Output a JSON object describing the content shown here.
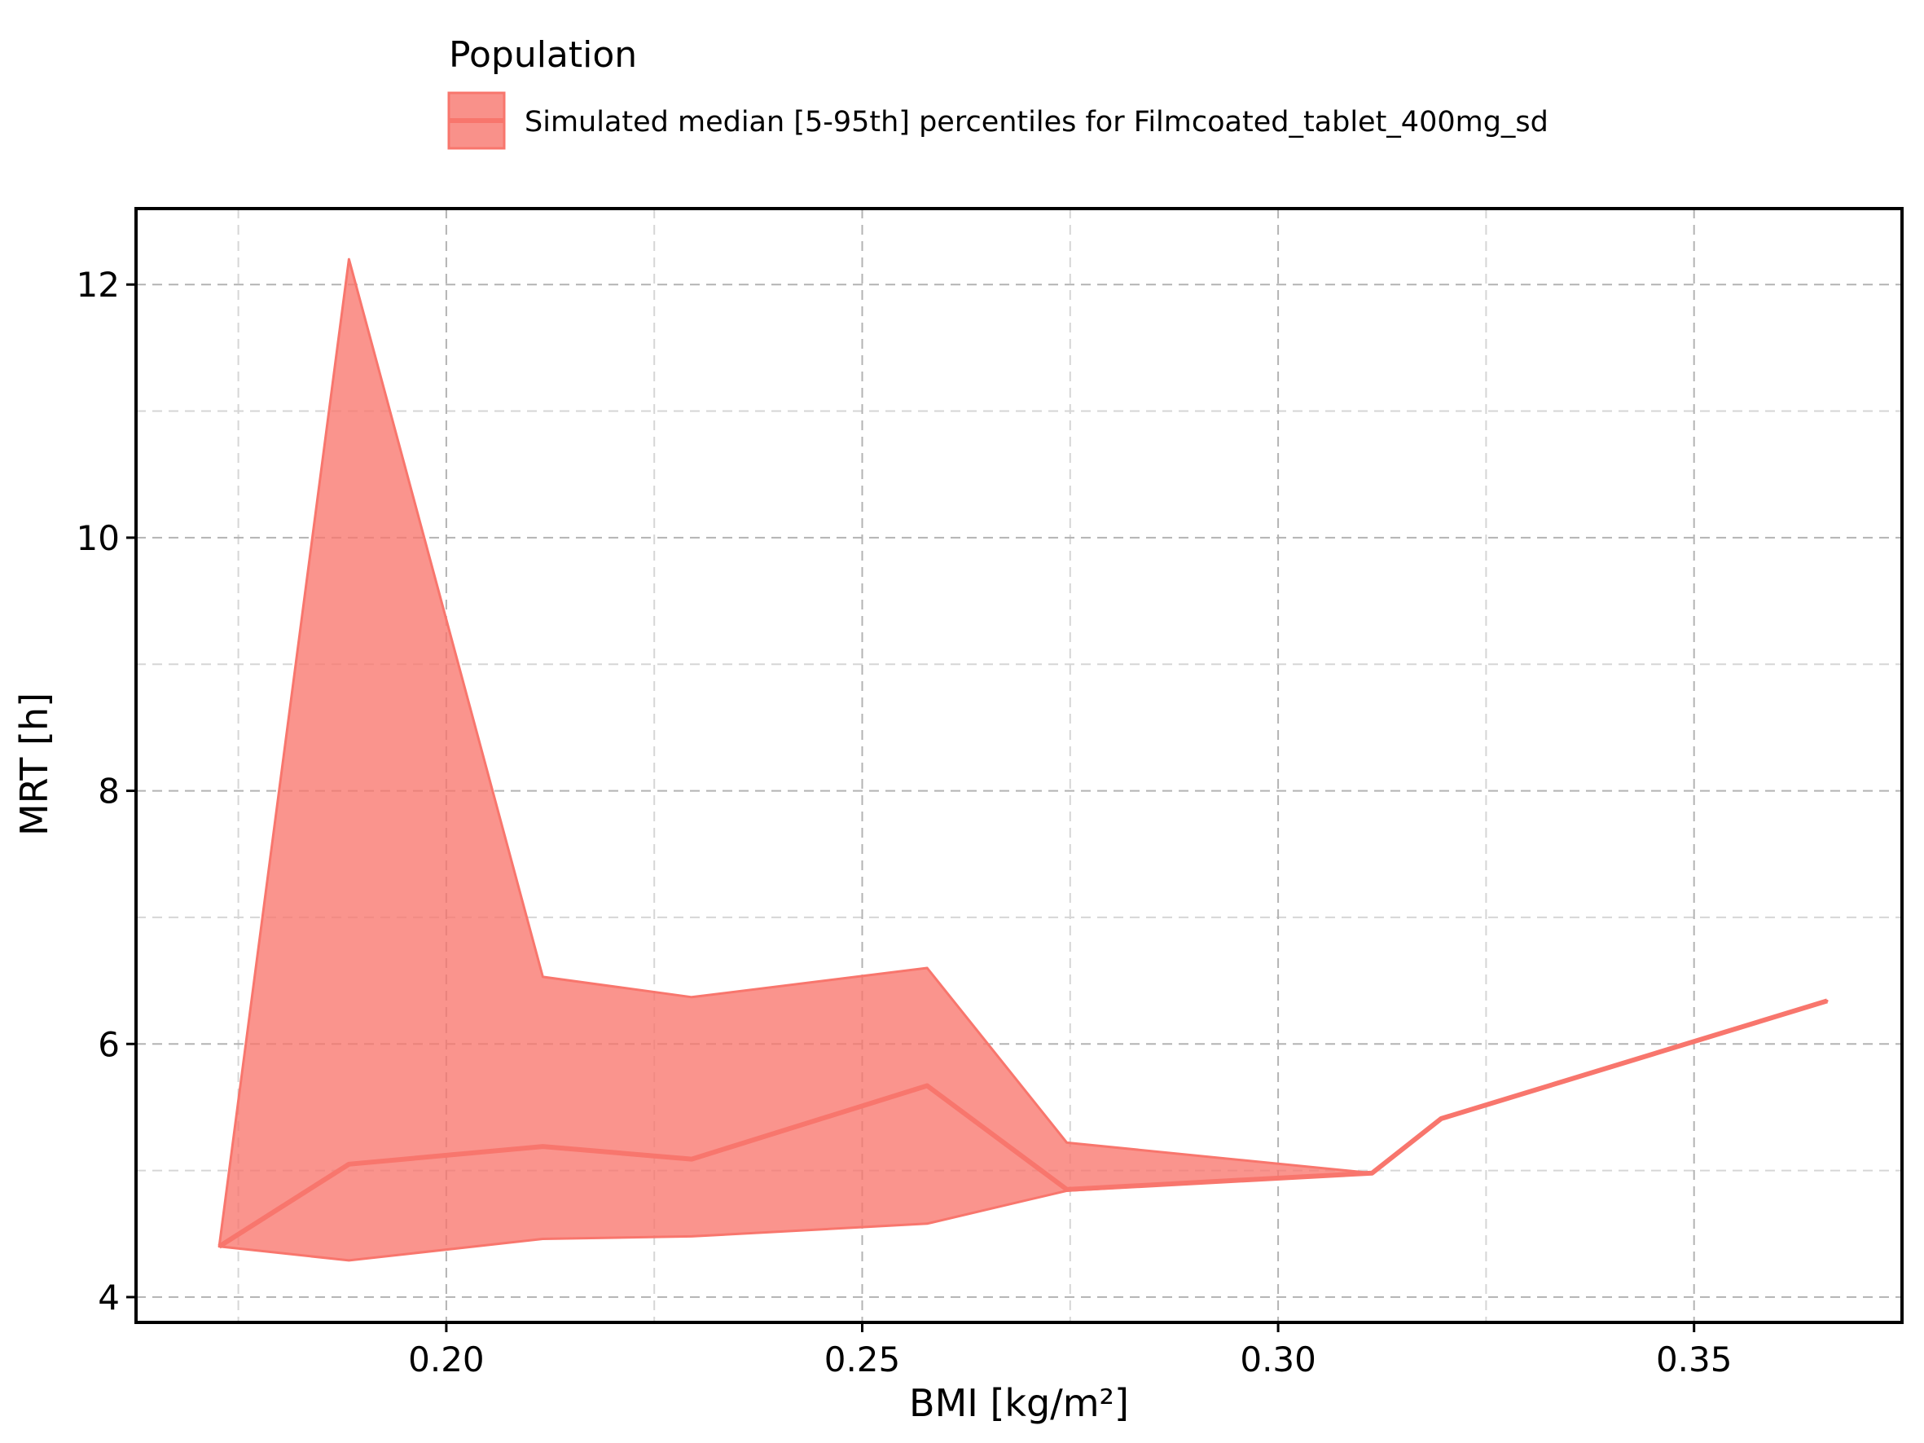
{
  "chart_data": {
    "type": "area",
    "title": "",
    "xlabel": "BMI [kg/m²]",
    "ylabel": "MRT [h]",
    "xlim": [
      0.1627,
      0.375
    ],
    "ylim": [
      3.8,
      12.6
    ],
    "xticks": [
      0.2,
      0.25,
      0.3,
      0.35
    ],
    "xtick_labels": [
      "0.20",
      "0.25",
      "0.30",
      "0.35"
    ],
    "yticks": [
      4,
      6,
      8,
      10,
      12
    ],
    "ytick_labels": [
      "4",
      "6",
      "8",
      "10",
      "12"
    ],
    "minor_xticks": [
      0.175,
      0.225,
      0.275,
      0.325
    ],
    "minor_yticks": [
      5,
      7,
      9,
      11
    ],
    "grid": true,
    "legend": {
      "title": "Population",
      "placement": "top-center-outside",
      "entries": [
        "Simulated median [5-95th] percentiles for Filmcoated_tablet_400mg_sd"
      ]
    },
    "color": "#F8766D",
    "series": [
      {
        "name": "Simulated median [5-95th] percentiles for Filmcoated_tablet_400mg_sd",
        "x": [
          0.1727,
          0.1883,
          0.2116,
          0.2295,
          0.2578,
          0.2746,
          0.3113,
          0.3196,
          0.366
        ],
        "median": [
          4.4,
          5.05,
          5.19,
          5.09,
          5.67,
          4.85,
          4.98,
          5.41,
          6.34
        ],
        "lower": [
          4.4,
          4.29,
          4.46,
          4.48,
          4.58,
          4.84,
          4.98,
          5.41,
          6.34
        ],
        "upper": [
          4.4,
          12.2,
          6.53,
          6.37,
          6.6,
          5.22,
          4.98,
          5.41,
          6.34
        ]
      }
    ]
  }
}
